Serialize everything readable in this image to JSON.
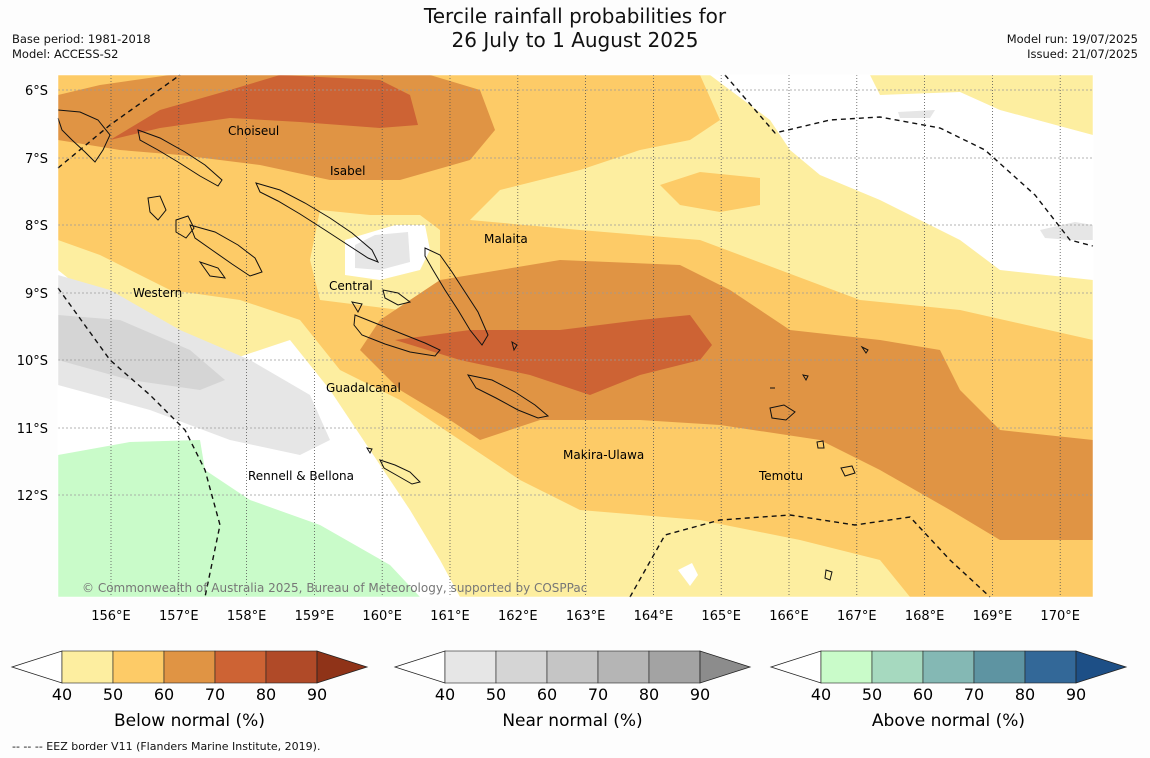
{
  "title": {
    "line1": "Tercile rainfall probabilities for",
    "line2": "26 July to 1 August 2025"
  },
  "meta": {
    "base_period": "Base period: 1981-2018",
    "model": "Model: ACCESS-S2",
    "model_run": "Model run: 19/07/2025",
    "issued": "Issued: 21/07/2025"
  },
  "map": {
    "lon_labels": [
      "156°E",
      "157°E",
      "158°E",
      "159°E",
      "160°E",
      "161°E",
      "162°E",
      "163°E",
      "164°E",
      "165°E",
      "166°E",
      "167°E",
      "168°E",
      "169°E",
      "170°E"
    ],
    "lat_labels": [
      "6°S",
      "7°S",
      "8°S",
      "9°S",
      "10°S",
      "11°S",
      "12°S"
    ],
    "regions": [
      "Choiseul",
      "Isabel",
      "Malaita",
      "Western",
      "Central",
      "Guadalcanal",
      "Makira-Ulawa",
      "Temotu",
      "Rennell & Bellona"
    ],
    "copyright": "© Commonwealth of Australia 2025, Bureau of Meteorology, supported by COSPPac",
    "colors": {
      "below": [
        "#fdeea0",
        "#fdcb67",
        "#e09444",
        "#cd6334",
        "#b04a28",
        "#8f3318"
      ],
      "near": [
        "#e6e6e6",
        "#d5d5d5",
        "#c5c5c5",
        "#b5b5b5",
        "#a3a3a3",
        "#8c8c8c"
      ],
      "above": [
        "#c9fbc9",
        "#a6d9bf",
        "#84b8b4",
        "#5e94a2",
        "#336898",
        "#1d4f86"
      ]
    }
  },
  "colorbars": [
    {
      "title": "Below normal (%)",
      "ticks": [
        "40",
        "50",
        "60",
        "70",
        "80",
        "90"
      ]
    },
    {
      "title": "Near normal (%)",
      "ticks": [
        "40",
        "50",
        "60",
        "70",
        "80",
        "90"
      ]
    },
    {
      "title": "Above normal (%)",
      "ticks": [
        "40",
        "50",
        "60",
        "70",
        "80",
        "90"
      ]
    }
  ],
  "footer": "--  --  -- EEZ border V11 (Flanders Marine Institute, 2019)."
}
